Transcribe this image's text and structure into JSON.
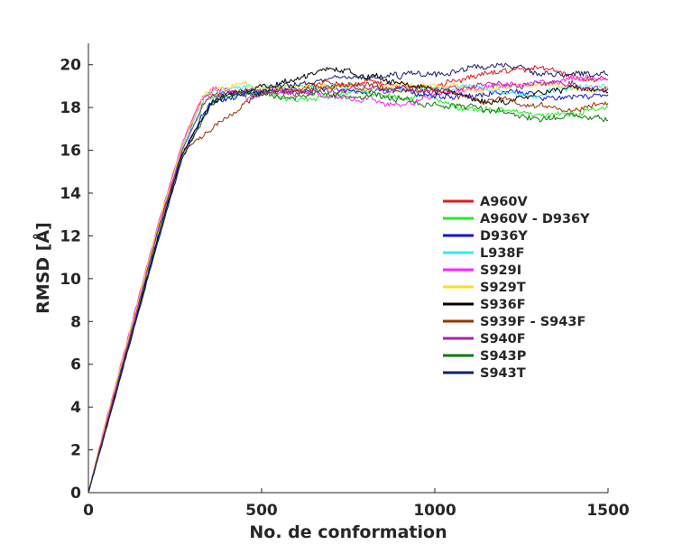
{
  "chart_data": {
    "type": "line",
    "title": "",
    "xlabel": "No. de conformation",
    "ylabel": "RMSD [Å]",
    "xlim": [
      0,
      1500
    ],
    "ylim": [
      0,
      21
    ],
    "xticks": [
      0,
      500,
      1000,
      1500
    ],
    "yticks": [
      0,
      2,
      4,
      6,
      8,
      10,
      12,
      14,
      16,
      18,
      20
    ],
    "grid": false,
    "legend_position": "center-right",
    "series": [
      {
        "name": "A960V",
        "color": "#e41a1c",
        "x": [
          0,
          50,
          120,
          200,
          270,
          335,
          360,
          400,
          450,
          500,
          600,
          700,
          800,
          900,
          1000,
          1100,
          1200,
          1300,
          1400,
          1500
        ],
        "y": [
          0,
          3.2,
          7.4,
          12.3,
          16.2,
          18.6,
          18.7,
          18.8,
          18.9,
          18.8,
          18.9,
          19.1,
          19.2,
          19.0,
          18.9,
          19.4,
          19.6,
          19.8,
          19.5,
          19.3
        ]
      },
      {
        "name": "A960V - D936Y",
        "color": "#22ee22",
        "x": [
          0,
          50,
          120,
          200,
          270,
          340,
          365,
          400,
          450,
          500,
          600,
          700,
          800,
          900,
          1000,
          1100,
          1200,
          1300,
          1400,
          1500
        ],
        "y": [
          0,
          3.1,
          7.3,
          12.1,
          16.0,
          18.3,
          18.5,
          18.6,
          18.7,
          18.6,
          18.4,
          18.6,
          18.8,
          18.5,
          18.4,
          18.0,
          17.9,
          17.6,
          17.8,
          18.0
        ]
      },
      {
        "name": "D936Y",
        "color": "#1111dd",
        "x": [
          0,
          50,
          120,
          200,
          270,
          350,
          380,
          400,
          450,
          500,
          600,
          700,
          800,
          900,
          1000,
          1100,
          1200,
          1300,
          1400,
          1500
        ],
        "y": [
          0,
          3.0,
          7.1,
          11.9,
          15.8,
          18.2,
          18.4,
          18.5,
          18.6,
          18.7,
          18.8,
          18.9,
          18.7,
          18.8,
          18.6,
          18.5,
          18.7,
          18.4,
          18.5,
          18.6
        ]
      },
      {
        "name": "L938F",
        "color": "#33eeee",
        "x": [
          0,
          50,
          120,
          200,
          270,
          335,
          360,
          400,
          450,
          500,
          600,
          700,
          800,
          900,
          1000,
          1100,
          1200,
          1300,
          1400,
          1500
        ],
        "y": [
          0,
          3.2,
          7.4,
          12.2,
          16.1,
          18.5,
          18.7,
          18.8,
          18.9,
          18.8,
          19.0,
          18.9,
          18.8,
          18.7,
          18.9,
          19.0,
          18.8,
          18.7,
          18.9,
          19.0
        ]
      },
      {
        "name": "S929I",
        "color": "#ff22ff",
        "x": [
          0,
          50,
          120,
          200,
          270,
          330,
          360,
          400,
          450,
          500,
          600,
          700,
          800,
          900,
          1000,
          1100,
          1200,
          1300,
          1400,
          1500
        ],
        "y": [
          0,
          3.3,
          7.6,
          12.5,
          16.3,
          18.6,
          18.7,
          18.7,
          18.5,
          18.6,
          18.7,
          18.6,
          18.4,
          18.0,
          18.4,
          18.7,
          18.9,
          19.2,
          19.4,
          19.3
        ]
      },
      {
        "name": "S929T",
        "color": "#ffdd22",
        "x": [
          0,
          50,
          120,
          200,
          270,
          332,
          360,
          400,
          450,
          500,
          600,
          700,
          800,
          900,
          1000,
          1100,
          1200,
          1300,
          1400,
          1500
        ],
        "y": [
          0,
          3.3,
          7.5,
          12.4,
          16.2,
          18.5,
          18.7,
          18.8,
          18.9,
          18.8,
          18.9,
          18.9,
          18.9,
          19.0,
          19.1,
          18.8,
          18.9,
          19.1,
          18.9,
          18.8
        ]
      },
      {
        "name": "S936F",
        "color": "#000000",
        "x": [
          0,
          50,
          120,
          200,
          270,
          350,
          380,
          400,
          450,
          500,
          600,
          650,
          700,
          750,
          800,
          900,
          1000,
          1100,
          1200,
          1300,
          1400,
          1500
        ],
        "y": [
          0,
          3.0,
          7.1,
          11.9,
          15.8,
          18.2,
          18.4,
          18.6,
          18.8,
          19.1,
          19.3,
          19.6,
          19.8,
          19.6,
          19.4,
          19.0,
          18.8,
          18.5,
          18.3,
          18.6,
          18.9,
          18.7
        ]
      },
      {
        "name": "S939F - S943F",
        "color": "#993300",
        "x": [
          0,
          50,
          120,
          200,
          270,
          330,
          360,
          400,
          440,
          480,
          500,
          600,
          700,
          800,
          900,
          1000,
          1100,
          1200,
          1300,
          1400,
          1500
        ],
        "y": [
          0,
          3.1,
          7.3,
          12.2,
          15.9,
          16.7,
          17.0,
          17.4,
          17.9,
          18.5,
          18.7,
          18.8,
          18.9,
          19.0,
          18.6,
          18.7,
          18.5,
          18.3,
          18.0,
          17.9,
          18.2
        ]
      },
      {
        "name": "S940F",
        "color": "#aa22aa",
        "x": [
          0,
          50,
          120,
          200,
          270,
          340,
          365,
          400,
          450,
          500,
          600,
          700,
          800,
          900,
          1000,
          1100,
          1200,
          1300,
          1400,
          1500
        ],
        "y": [
          0,
          3.1,
          7.3,
          12.2,
          16.0,
          18.4,
          18.6,
          18.7,
          18.8,
          18.7,
          18.6,
          18.8,
          18.9,
          18.7,
          18.8,
          18.9,
          19.0,
          19.1,
          19.0,
          18.9
        ]
      },
      {
        "name": "S943P",
        "color": "#117711",
        "x": [
          0,
          50,
          120,
          200,
          270,
          355,
          380,
          400,
          450,
          500,
          600,
          700,
          800,
          900,
          1000,
          1100,
          1200,
          1300,
          1400,
          1500
        ],
        "y": [
          0,
          2.9,
          7.0,
          11.7,
          15.6,
          18.2,
          18.4,
          18.5,
          18.6,
          18.7,
          18.6,
          18.7,
          18.6,
          18.4,
          18.2,
          18.0,
          17.8,
          17.5,
          17.6,
          17.4
        ]
      },
      {
        "name": "S943T",
        "color": "#112266",
        "x": [
          0,
          50,
          120,
          200,
          270,
          355,
          380,
          400,
          450,
          500,
          600,
          700,
          800,
          900,
          1000,
          1100,
          1200,
          1300,
          1400,
          1500
        ],
        "y": [
          0,
          2.9,
          7.0,
          11.7,
          15.6,
          18.3,
          18.5,
          18.6,
          18.7,
          18.9,
          19.1,
          19.3,
          19.4,
          19.4,
          19.5,
          19.7,
          19.9,
          19.7,
          19.6,
          19.5
        ]
      }
    ]
  }
}
